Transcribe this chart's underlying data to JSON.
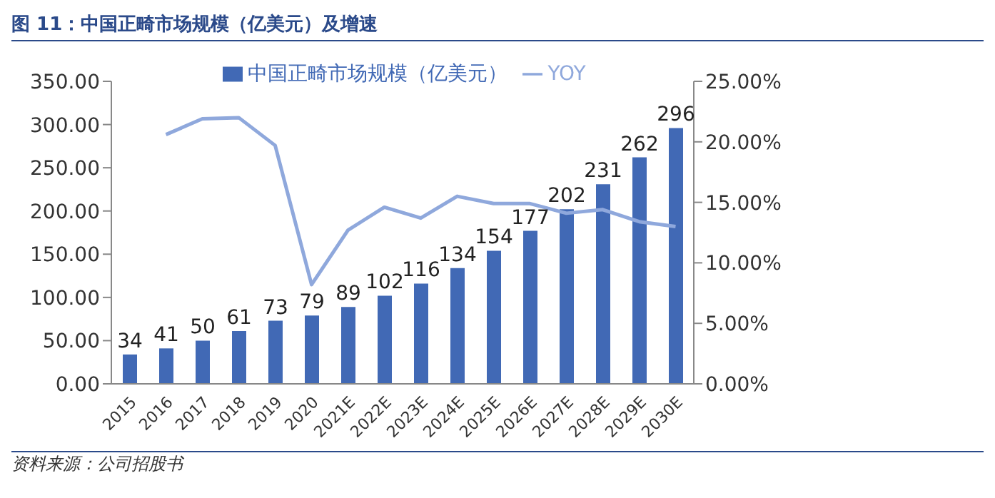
{
  "chart_data": {
    "type": "bar",
    "title": "图 11：中国正畸市场规模（亿美元）及增速",
    "categories": [
      "2015",
      "2016",
      "2017",
      "2018",
      "2019",
      "2020",
      "2021E",
      "2022E",
      "2023E",
      "2024E",
      "2025E",
      "2026E",
      "2027E",
      "2028E",
      "2029E",
      "2030E"
    ],
    "series": [
      {
        "name": "中国正畸市场规模（亿美元）",
        "color": "#4169b5",
        "values": [
          34,
          41,
          50,
          61,
          73,
          79,
          89,
          102,
          116,
          134,
          154,
          177,
          202,
          231,
          262,
          296
        ],
        "value_labels": [
          "34",
          "41",
          "50",
          "61",
          "73",
          "79",
          "89",
          "102",
          "116",
          "134",
          "154",
          "177",
          "202",
          "231",
          "262",
          "296"
        ]
      },
      {
        "name": "YOY",
        "type": "line",
        "axis": "y2",
        "color": "#8fa8dc",
        "values": [
          null,
          20.6,
          21.9,
          22.0,
          19.7,
          8.2,
          12.7,
          14.6,
          13.7,
          15.5,
          14.9,
          14.9,
          14.1,
          14.4,
          13.4,
          13.0
        ]
      }
    ],
    "ylim": [
      0,
      350
    ],
    "yticks": [
      {
        "value": 0,
        "label": "0.00"
      },
      {
        "value": 50,
        "label": "50.00"
      },
      {
        "value": 100,
        "label": "100.00"
      },
      {
        "value": 150,
        "label": "150.00"
      },
      {
        "value": 200,
        "label": "200.00"
      },
      {
        "value": 250,
        "label": "250.00"
      },
      {
        "value": 300,
        "label": "300.00"
      },
      {
        "value": 350,
        "label": "350.00"
      }
    ],
    "y2lim": [
      0,
      25
    ],
    "y2ticks": [
      {
        "value": 0,
        "label": "0.00%"
      },
      {
        "value": 5,
        "label": "5.00%"
      },
      {
        "value": 10,
        "label": "10.00%"
      },
      {
        "value": 15,
        "label": "15.00%"
      },
      {
        "value": 20,
        "label": "20.00%"
      },
      {
        "value": 25,
        "label": "25.00%"
      }
    ],
    "grid": false,
    "legend": "top",
    "marker": "none",
    "line_style": "solid",
    "annotations": [
      "资料来源：公司招股书"
    ]
  }
}
